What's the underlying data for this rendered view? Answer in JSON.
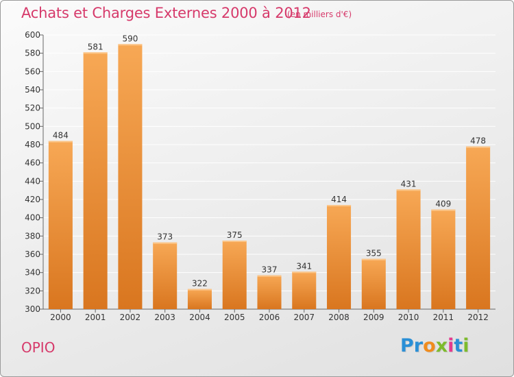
{
  "header": {
    "title": "Achats et Charges Externes 2000 à 2012",
    "subtitle": "(en milliers d'€)"
  },
  "footer": {
    "commune": "OPIO",
    "logo_letters": [
      "P",
      "r",
      "o",
      "x",
      "i",
      "t",
      "i"
    ],
    "logo_colors": [
      "#2a8fd6",
      "#2a8fd6",
      "#f08c1e",
      "#7dbb2c",
      "#e53a8e",
      "#2a8fd6",
      "#7dbb2c"
    ]
  },
  "colors": {
    "bar_light": "#f7a855",
    "bar_dark": "#d9761f",
    "grid": "#ffffff",
    "axis": "#666666"
  },
  "chart_data": {
    "type": "bar",
    "title": "Achats et Charges Externes 2000 à 2012",
    "subtitle": "(en milliers d'€)",
    "xlabel": "",
    "ylabel": "",
    "categories": [
      "2000",
      "2001",
      "2002",
      "2003",
      "2004",
      "2005",
      "2006",
      "2007",
      "2008",
      "2009",
      "2010",
      "2011",
      "2012"
    ],
    "values": [
      484,
      581,
      590,
      373,
      322,
      375,
      337,
      341,
      414,
      355,
      431,
      409,
      478
    ],
    "ylim": [
      300,
      600
    ],
    "yticks": [
      300,
      320,
      340,
      360,
      380,
      400,
      420,
      440,
      460,
      480,
      500,
      520,
      540,
      560,
      580,
      600
    ],
    "grid": true,
    "legend": "none"
  }
}
